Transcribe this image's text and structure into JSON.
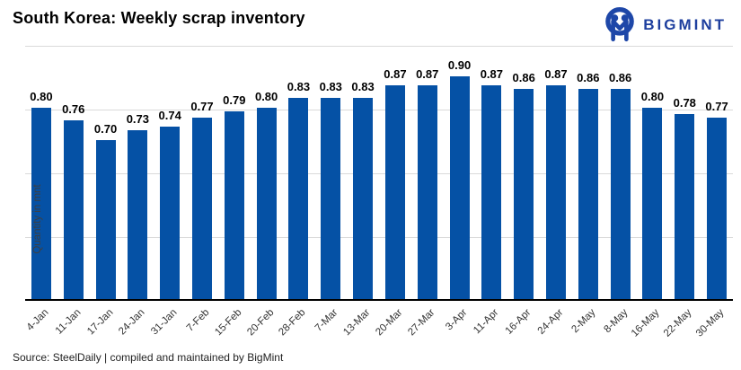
{
  "header": {
    "title": "South Korea: Weekly scrap inventory",
    "brand": "BIGMINT"
  },
  "chart_data": {
    "type": "bar",
    "title": "South Korea: Weekly scrap inventory",
    "categories": [
      "4-Jan",
      "11-Jan",
      "17-Jan",
      "24-Jan",
      "31-Jan",
      "7-Feb",
      "15-Feb",
      "20-Feb",
      "28-Feb",
      "7-Mar",
      "13-Mar",
      "20-Mar",
      "27-Mar",
      "3-Apr",
      "11-Apr",
      "16-Apr",
      "24-Apr",
      "2-May",
      "8-May",
      "16-May",
      "22-May",
      "30-May"
    ],
    "values": [
      0.8,
      0.76,
      0.7,
      0.73,
      0.74,
      0.77,
      0.79,
      0.8,
      0.83,
      0.83,
      0.83,
      0.87,
      0.87,
      0.9,
      0.87,
      0.86,
      0.87,
      0.86,
      0.86,
      0.8,
      0.78,
      0.77
    ],
    "value_labels": [
      "0.80",
      "0.76",
      "0.70",
      "0.73",
      "0.74",
      "0.77",
      "0.79",
      "0.80",
      "0.83",
      "0.83",
      "0.83",
      "0.87",
      "0.87",
      "0.90",
      "0.87",
      "0.86",
      "0.87",
      "0.86",
      "0.86",
      "0.80",
      "0.78",
      "0.77"
    ],
    "xlabel": "",
    "ylabel": "Quantity in mnt",
    "ylim": [
      0.2,
      1.0
    ],
    "gridline_values": [
      0.4,
      0.6,
      0.8,
      1.0
    ],
    "grid": "horizontal",
    "legend_position": "none",
    "bar_color": "#0551a5"
  },
  "footer": {
    "source": "Source: SteelDaily | compiled and maintained by BigMint"
  },
  "colors": {
    "bar": "#0551a5",
    "brand_blue": "#1e3f9e",
    "gridline": "#d9d9d9",
    "axis_line": "#000000",
    "x_label": "#333333",
    "y_title": "#3f3f3f"
  }
}
